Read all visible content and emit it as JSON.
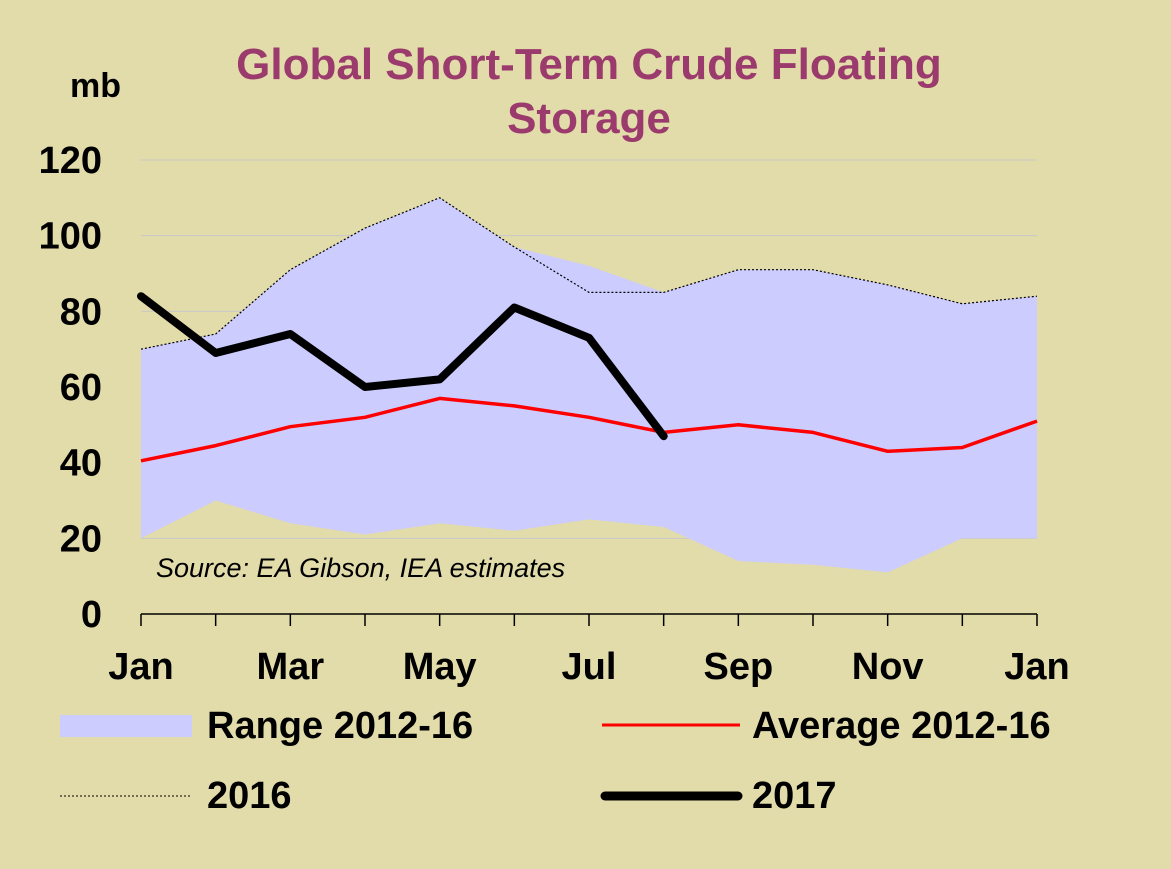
{
  "chart_data": {
    "type": "line",
    "title": "Global Short-Term Crude Floating Storage",
    "title_lines": [
      "Global Short-Term Crude Floating",
      "Storage"
    ],
    "ylabel": "mb",
    "xlabel": "",
    "ylim": [
      0,
      120
    ],
    "yticks": [
      0,
      20,
      40,
      60,
      80,
      100,
      120
    ],
    "x_points": 13,
    "x_tick_labels": [
      {
        "index": 0,
        "label": "Jan"
      },
      {
        "index": 2,
        "label": "Mar"
      },
      {
        "index": 4,
        "label": "May"
      },
      {
        "index": 6,
        "label": "Jul"
      },
      {
        "index": 8,
        "label": "Sep"
      },
      {
        "index": 10,
        "label": "Nov"
      },
      {
        "index": 12,
        "label": "Jan"
      }
    ],
    "grid": true,
    "annotation": "Source: EA Gibson, IEA estimates",
    "series": [
      {
        "name": "Range 2012-16",
        "kind": "band",
        "color": "#ccccff",
        "lower": [
          20,
          30,
          24,
          21,
          24,
          22,
          25,
          23,
          14,
          13,
          11,
          20,
          20
        ],
        "upper": [
          70,
          74,
          91,
          102,
          110,
          97,
          92,
          85,
          91,
          91,
          87,
          82,
          84
        ]
      },
      {
        "name": "Average 2012-16",
        "kind": "line",
        "color": "#ff0000",
        "values": [
          40.5,
          44.5,
          49.5,
          52,
          57,
          55,
          52,
          48,
          50,
          48,
          43,
          44,
          51
        ]
      },
      {
        "name": "2016",
        "kind": "dotted",
        "color": "#000000",
        "values": [
          70,
          74,
          91,
          102,
          110,
          97,
          85,
          85,
          91,
          91,
          87,
          82,
          84
        ]
      },
      {
        "name": "2017",
        "kind": "thick",
        "color": "#000000",
        "values": [
          84,
          69,
          74,
          60,
          62,
          81,
          73,
          47
        ]
      }
    ],
    "legend": [
      {
        "name": "Range 2012-16",
        "kind": "band"
      },
      {
        "name": "Average 2012-16",
        "kind": "line"
      },
      {
        "name": "2016",
        "kind": "dotted"
      },
      {
        "name": "2017",
        "kind": "thick"
      }
    ]
  }
}
